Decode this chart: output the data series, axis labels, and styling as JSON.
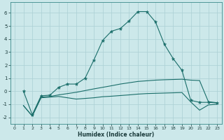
{
  "xlabel": "Humidex (Indice chaleur)",
  "bg_color": "#cce8ea",
  "grid_color": "#aacfd4",
  "line_color": "#1a6e6a",
  "xlim": [
    -0.5,
    23.5
  ],
  "ylim": [
    -2.5,
    6.8
  ],
  "yticks": [
    -2,
    -1,
    0,
    1,
    2,
    3,
    4,
    5,
    6
  ],
  "xticks": [
    0,
    1,
    2,
    3,
    4,
    5,
    6,
    7,
    8,
    9,
    10,
    11,
    12,
    13,
    14,
    15,
    16,
    17,
    18,
    19,
    20,
    21,
    22,
    23
  ],
  "series1_x": [
    1,
    2,
    3,
    4,
    5,
    6,
    7,
    8,
    9,
    10,
    11,
    12,
    13,
    14,
    15,
    16,
    17,
    18,
    19,
    20,
    21,
    22,
    23
  ],
  "series1_y": [
    0.0,
    -1.8,
    -0.35,
    -0.3,
    0.3,
    0.55,
    0.55,
    1.0,
    2.4,
    3.9,
    4.6,
    4.8,
    5.4,
    6.1,
    6.1,
    5.3,
    3.6,
    2.5,
    1.6,
    -0.7,
    -0.85,
    -0.85,
    -0.9
  ],
  "series2_x": [
    1,
    2,
    3,
    4,
    5,
    6,
    7,
    8,
    9,
    10,
    11,
    12,
    13,
    14,
    15,
    16,
    17,
    18,
    19,
    20,
    21,
    22,
    23
  ],
  "series2_y": [
    -1.1,
    -1.9,
    -0.45,
    -0.4,
    -0.28,
    -0.18,
    -0.08,
    0.05,
    0.18,
    0.3,
    0.42,
    0.55,
    0.65,
    0.75,
    0.8,
    0.85,
    0.88,
    0.9,
    0.92,
    0.85,
    0.82,
    -0.8,
    -0.88
  ],
  "series3_x": [
    1,
    2,
    3,
    4,
    5,
    6,
    7,
    8,
    9,
    10,
    11,
    12,
    13,
    14,
    15,
    16,
    17,
    18,
    19,
    20,
    21,
    22,
    23
  ],
  "series3_y": [
    -1.1,
    -1.9,
    -0.5,
    -0.45,
    -0.4,
    -0.5,
    -0.6,
    -0.55,
    -0.5,
    -0.42,
    -0.38,
    -0.33,
    -0.28,
    -0.22,
    -0.18,
    -0.16,
    -0.14,
    -0.12,
    -0.1,
    -0.82,
    -1.45,
    -1.05,
    -1.0
  ]
}
